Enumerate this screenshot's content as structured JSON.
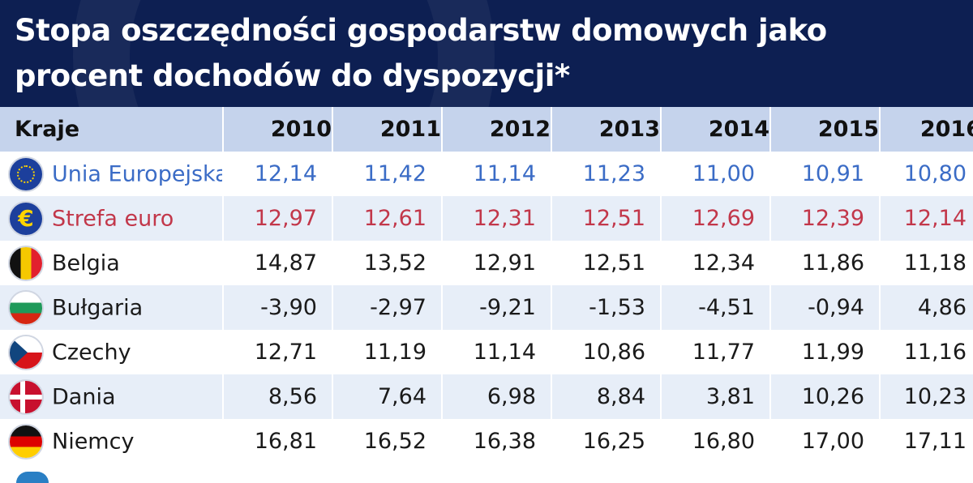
{
  "title": "Stopa oszczędności gospodarstw domowych jako procent dochodów do dyspozycji*",
  "colors": {
    "header_bg": "#0d1f52",
    "eu_text": "#3b6cc6",
    "euro_text": "#c2374a",
    "head_row": "#c5d3ec",
    "stripe": "#e7eef8"
  },
  "chart_data": {
    "type": "table",
    "title": "Stopa oszczędności gospodarstw domowych jako procent dochodów do dyspozycji*",
    "columns": [
      "Kraje",
      "2010",
      "2011",
      "2012",
      "2013",
      "2014",
      "2015",
      "2016"
    ],
    "rows": [
      {
        "country": "Unia Europejska",
        "icon": "eu-flag-icon",
        "style": "blue",
        "values": [
          "12,14",
          "11,42",
          "11,14",
          "11,23",
          "11,00",
          "10,91",
          "10,80"
        ]
      },
      {
        "country": "Strefa euro",
        "icon": "euro-icon",
        "style": "red",
        "values": [
          "12,97",
          "12,61",
          "12,31",
          "12,51",
          "12,69",
          "12,39",
          "12,14"
        ]
      },
      {
        "country": "Belgia",
        "icon": "belgium-flag-icon",
        "style": "black",
        "values": [
          "14,87",
          "13,52",
          "12,91",
          "12,51",
          "12,34",
          "11,86",
          "11,18"
        ]
      },
      {
        "country": "Bułgaria",
        "icon": "bulgaria-flag-icon",
        "style": "black",
        "values": [
          "-3,90",
          "-2,97",
          "-9,21",
          "-1,53",
          "-4,51",
          "-0,94",
          "4,86"
        ]
      },
      {
        "country": "Czechy",
        "icon": "czech-flag-icon",
        "style": "black",
        "values": [
          "12,71",
          "11,19",
          "11,14",
          "10,86",
          "11,77",
          "11,99",
          "11,16"
        ]
      },
      {
        "country": "Dania",
        "icon": "denmark-flag-icon",
        "style": "black",
        "values": [
          "8,56",
          "7,64",
          "6,98",
          "8,84",
          "3,81",
          "10,26",
          "10,23"
        ]
      },
      {
        "country": "Niemcy",
        "icon": "germany-flag-icon",
        "style": "black",
        "values": [
          "16,81",
          "16,52",
          "16,38",
          "16,25",
          "16,80",
          "17,00",
          "17,11"
        ]
      }
    ]
  }
}
